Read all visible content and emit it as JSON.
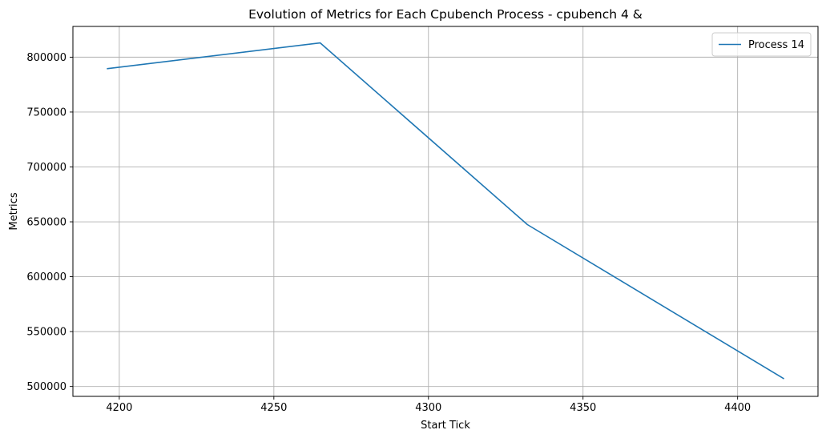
{
  "chart_data": {
    "type": "line",
    "title": "Evolution of Metrics for Each Cpubench Process - cpubench 4 &",
    "xlabel": "Start Tick",
    "ylabel": "Metrics",
    "x_ticks": [
      4200,
      4250,
      4300,
      4350,
      4400
    ],
    "y_ticks": [
      500000,
      550000,
      600000,
      650000,
      700000,
      750000,
      800000
    ],
    "xlim": [
      4185,
      4426
    ],
    "ylim": [
      491000,
      828000
    ],
    "grid": true,
    "legend_position": "top-right",
    "series": [
      {
        "name": "Process 14",
        "color": "#1f77b4",
        "x": [
          4196,
          4265,
          4332,
          4415
        ],
        "y": [
          789500,
          813000,
          647500,
          507000
        ]
      }
    ]
  }
}
